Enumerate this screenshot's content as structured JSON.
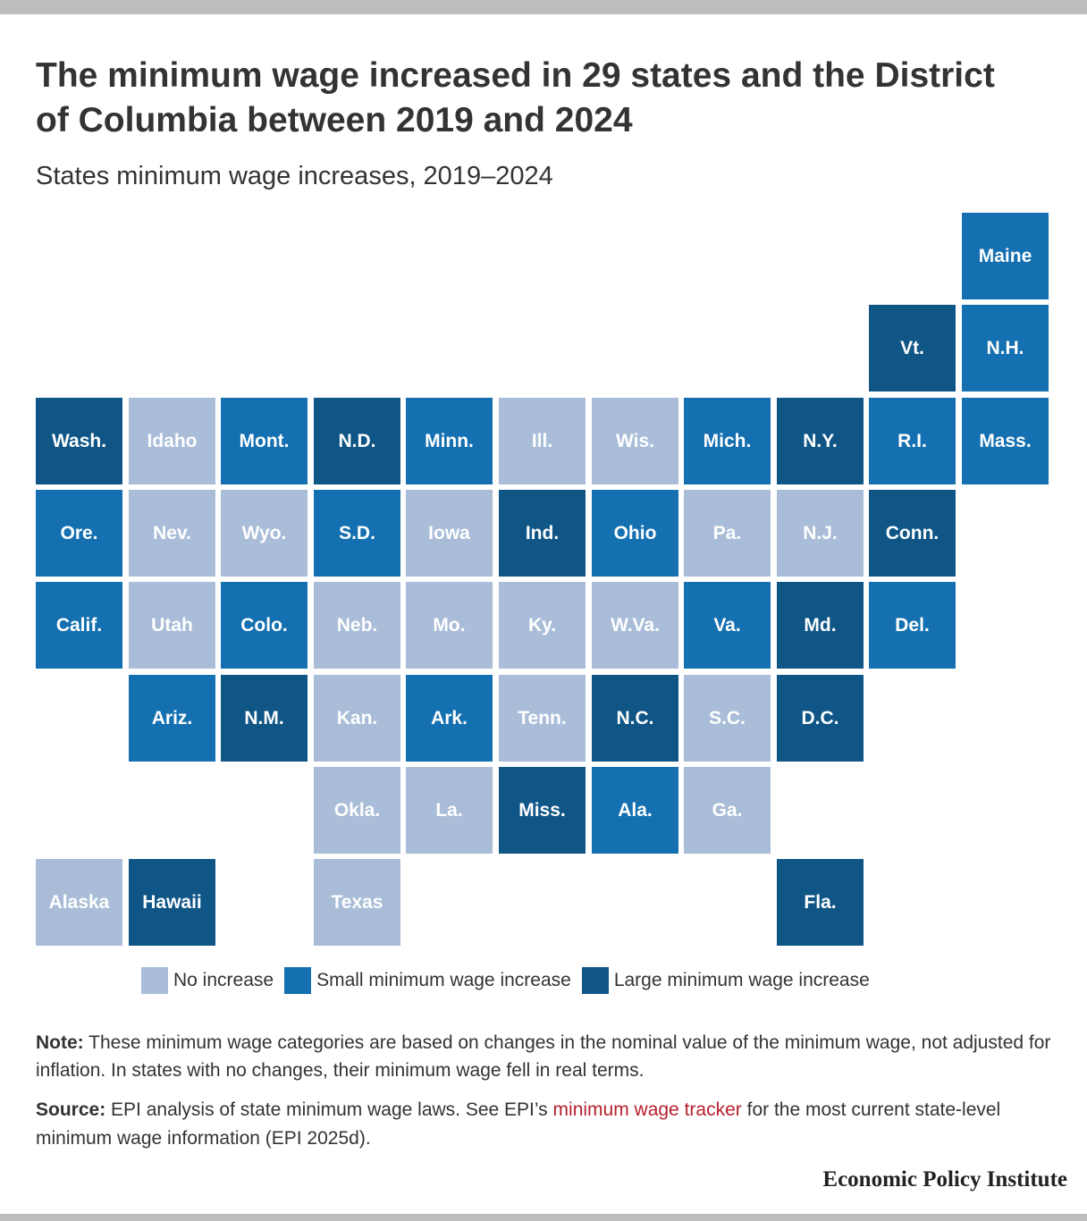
{
  "title": "The minimum wage increased in 29 states and the District of Columbia between 2019 and 2024",
  "subtitle": "States minimum wage increases, 2019–2024",
  "colors": {
    "none": "#a9bdd8",
    "small": "#1470b0",
    "large": "#0f5687"
  },
  "legend": [
    {
      "key": "none",
      "label": "No increase"
    },
    {
      "key": "small",
      "label": "Small minimum wage increase"
    },
    {
      "key": "large",
      "label": "Large minimum wage increase"
    }
  ],
  "states": [
    {
      "label": "Maine",
      "col": 10,
      "row": 0,
      "category": "small"
    },
    {
      "label": "Vt.",
      "col": 9,
      "row": 1,
      "category": "large"
    },
    {
      "label": "N.H.",
      "col": 10,
      "row": 1,
      "category": "small"
    },
    {
      "label": "Wash.",
      "col": 0,
      "row": 2,
      "category": "large"
    },
    {
      "label": "Idaho",
      "col": 1,
      "row": 2,
      "category": "none"
    },
    {
      "label": "Mont.",
      "col": 2,
      "row": 2,
      "category": "small"
    },
    {
      "label": "N.D.",
      "col": 3,
      "row": 2,
      "category": "large"
    },
    {
      "label": "Minn.",
      "col": 4,
      "row": 2,
      "category": "small"
    },
    {
      "label": "Ill.",
      "col": 5,
      "row": 2,
      "category": "none"
    },
    {
      "label": "Wis.",
      "col": 6,
      "row": 2,
      "category": "none"
    },
    {
      "label": "Mich.",
      "col": 7,
      "row": 2,
      "category": "small"
    },
    {
      "label": "N.Y.",
      "col": 8,
      "row": 2,
      "category": "large"
    },
    {
      "label": "R.I.",
      "col": 9,
      "row": 2,
      "category": "small"
    },
    {
      "label": "Mass.",
      "col": 10,
      "row": 2,
      "category": "small"
    },
    {
      "label": "Ore.",
      "col": 0,
      "row": 3,
      "category": "small"
    },
    {
      "label": "Nev.",
      "col": 1,
      "row": 3,
      "category": "none"
    },
    {
      "label": "Wyo.",
      "col": 2,
      "row": 3,
      "category": "none"
    },
    {
      "label": "S.D.",
      "col": 3,
      "row": 3,
      "category": "small"
    },
    {
      "label": "Iowa",
      "col": 4,
      "row": 3,
      "category": "none"
    },
    {
      "label": "Ind.",
      "col": 5,
      "row": 3,
      "category": "large"
    },
    {
      "label": "Ohio",
      "col": 6,
      "row": 3,
      "category": "small"
    },
    {
      "label": "Pa.",
      "col": 7,
      "row": 3,
      "category": "none"
    },
    {
      "label": "N.J.",
      "col": 8,
      "row": 3,
      "category": "none"
    },
    {
      "label": "Conn.",
      "col": 9,
      "row": 3,
      "category": "large"
    },
    {
      "label": "Calif.",
      "col": 0,
      "row": 4,
      "category": "small"
    },
    {
      "label": "Utah",
      "col": 1,
      "row": 4,
      "category": "none"
    },
    {
      "label": "Colo.",
      "col": 2,
      "row": 4,
      "category": "small"
    },
    {
      "label": "Neb.",
      "col": 3,
      "row": 4,
      "category": "none"
    },
    {
      "label": "Mo.",
      "col": 4,
      "row": 4,
      "category": "none"
    },
    {
      "label": "Ky.",
      "col": 5,
      "row": 4,
      "category": "none"
    },
    {
      "label": "W.Va.",
      "col": 6,
      "row": 4,
      "category": "none"
    },
    {
      "label": "Va.",
      "col": 7,
      "row": 4,
      "category": "small"
    },
    {
      "label": "Md.",
      "col": 8,
      "row": 4,
      "category": "large"
    },
    {
      "label": "Del.",
      "col": 9,
      "row": 4,
      "category": "small"
    },
    {
      "label": "Ariz.",
      "col": 1,
      "row": 5,
      "category": "small"
    },
    {
      "label": "N.M.",
      "col": 2,
      "row": 5,
      "category": "large"
    },
    {
      "label": "Kan.",
      "col": 3,
      "row": 5,
      "category": "none"
    },
    {
      "label": "Ark.",
      "col": 4,
      "row": 5,
      "category": "small"
    },
    {
      "label": "Tenn.",
      "col": 5,
      "row": 5,
      "category": "none"
    },
    {
      "label": "N.C.",
      "col": 6,
      "row": 5,
      "category": "large"
    },
    {
      "label": "S.C.",
      "col": 7,
      "row": 5,
      "category": "none"
    },
    {
      "label": "D.C.",
      "col": 8,
      "row": 5,
      "category": "large"
    },
    {
      "label": "Okla.",
      "col": 3,
      "row": 6,
      "category": "none"
    },
    {
      "label": "La.",
      "col": 4,
      "row": 6,
      "category": "none"
    },
    {
      "label": "Miss.",
      "col": 5,
      "row": 6,
      "category": "large"
    },
    {
      "label": "Ala.",
      "col": 6,
      "row": 6,
      "category": "small"
    },
    {
      "label": "Ga.",
      "col": 7,
      "row": 6,
      "category": "none"
    },
    {
      "label": "Alaska",
      "col": 0,
      "row": 7,
      "category": "none"
    },
    {
      "label": "Hawaii",
      "col": 1,
      "row": 7,
      "category": "large"
    },
    {
      "label": "Texas",
      "col": 3,
      "row": 7,
      "category": "none"
    },
    {
      "label": "Fla.",
      "col": 8,
      "row": 7,
      "category": "large"
    }
  ],
  "note": {
    "label": "Note:",
    "text": "These minimum wage categories are based on changes in the nominal value of the minimum wage, not adjusted for inflation. In states with no changes, their minimum wage fell in real terms."
  },
  "source": {
    "label": "Source:",
    "text_before": "EPI analysis of state minimum wage laws. See EPI’s",
    "link_text": "minimum wage tracker",
    "text_after": "for the most current state-level minimum wage information (EPI 2025d)."
  },
  "brand": "Economic Policy Institute"
}
